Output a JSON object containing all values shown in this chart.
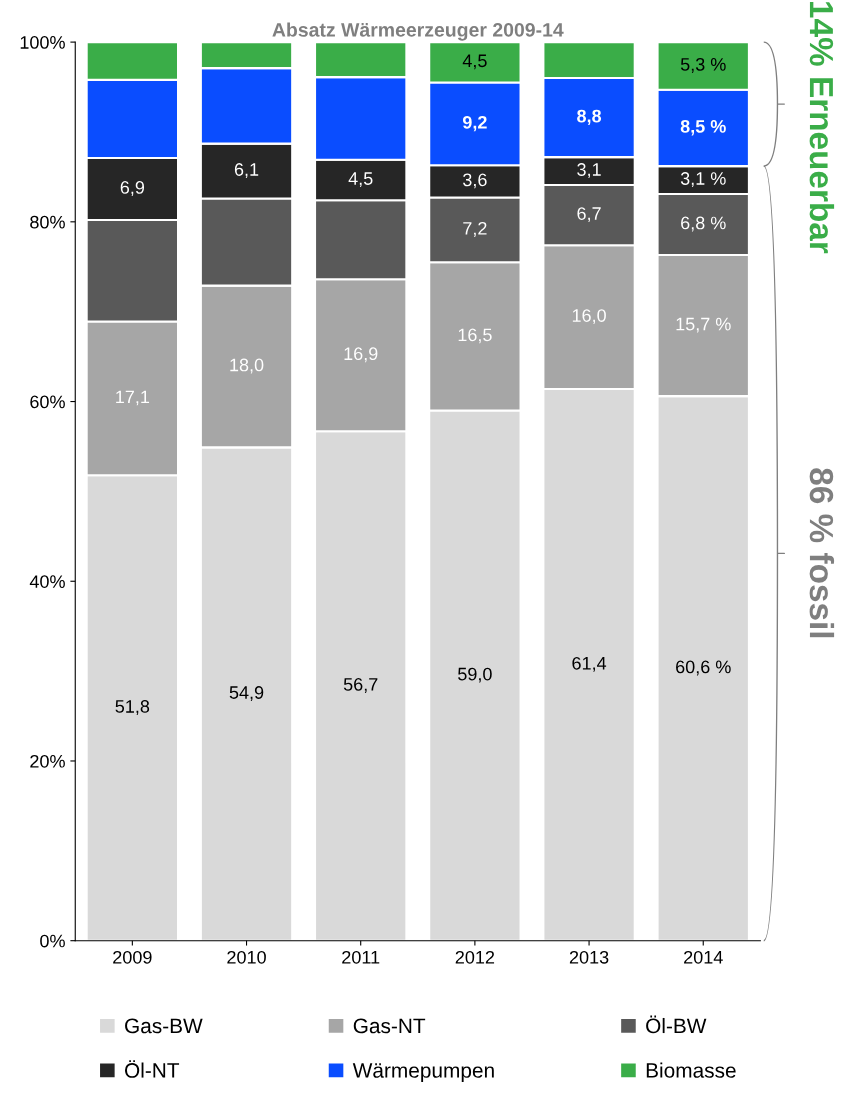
{
  "chart_data": {
    "type": "bar",
    "stacked": true,
    "title": "Absatz Wärmeerzeuger 2009-14",
    "categories": [
      "2009",
      "2010",
      "2011",
      "2012",
      "2013",
      "2014"
    ],
    "series": [
      {
        "name": "Gas-BW",
        "color": "#d9d9d9",
        "values": [
          51.8,
          54.9,
          56.7,
          59.0,
          61.4,
          60.6
        ],
        "value_labels": [
          "51,8",
          "54,9",
          "56,7",
          "59,0",
          "61,4",
          "60,6 %"
        ]
      },
      {
        "name": "Gas-NT",
        "color": "#a6a6a6",
        "values": [
          17.1,
          18.0,
          16.9,
          16.5,
          16.0,
          15.7
        ],
        "value_labels": [
          "17,1",
          "18,0",
          "16,9",
          "16,5",
          "16,0",
          "15,7 %"
        ]
      },
      {
        "name": "Öl-BW",
        "color": "#595959",
        "values": [
          11.3,
          9.7,
          8.8,
          7.2,
          6.7,
          6.8
        ],
        "value_labels": [
          null,
          null,
          null,
          "7,2",
          "6,7",
          "6,8 %"
        ]
      },
      {
        "name": "Öl-NT",
        "color": "#262626",
        "values": [
          6.9,
          6.1,
          4.5,
          3.6,
          3.1,
          3.1
        ],
        "value_labels": [
          "6,9",
          "6,1",
          "4,5",
          "3,6",
          "3,1",
          "3,1 %"
        ]
      },
      {
        "name": "Wärmepumpen",
        "color": "#0a4dff",
        "values": [
          8.7,
          8.4,
          9.2,
          9.2,
          8.8,
          8.5
        ],
        "value_labels": [
          null,
          null,
          null,
          "9,2",
          "8,8",
          "8,5 %"
        ]
      },
      {
        "name": "Biomasse",
        "color": "#3aad48",
        "values": [
          4.2,
          2.9,
          3.9,
          4.5,
          4.0,
          5.3
        ],
        "value_labels": [
          null,
          null,
          null,
          "4,5",
          null,
          "5,3 %"
        ]
      }
    ],
    "ylim": [
      0,
      100
    ],
    "yticks": [
      {
        "value": 0,
        "label": "0%"
      },
      {
        "value": 20,
        "label": "20%"
      },
      {
        "value": 40,
        "label": "40%"
      },
      {
        "value": 60,
        "label": "60%"
      },
      {
        "value": 80,
        "label": "80%"
      },
      {
        "value": 100,
        "label": "100%"
      }
    ],
    "grid": false,
    "legend": "bottom",
    "annotations": [
      "14% Erneuerbar",
      "86 % fossil"
    ]
  }
}
